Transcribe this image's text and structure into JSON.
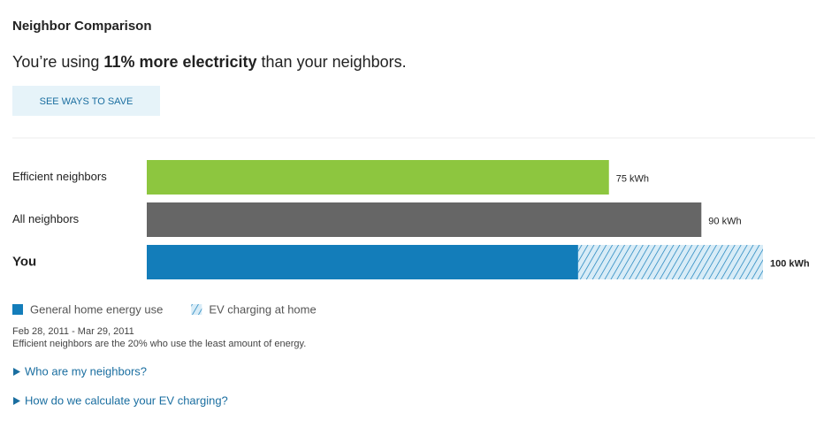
{
  "header": {
    "title": "Neighbor Comparison",
    "headline": {
      "before": "You’re using ",
      "emphasis": "11% more electricity",
      "after": " than your neighbors."
    },
    "button": "SEE WAYS TO SAVE"
  },
  "chart_data": {
    "type": "bar",
    "orientation": "horizontal",
    "categories": [
      "Efficient neighbors",
      "All neighbors",
      "You"
    ],
    "values": [
      75,
      90,
      100
    ],
    "value_labels": [
      "75 kWh",
      "90 kWh",
      "100 kWh"
    ],
    "colors": [
      "#8dc63f",
      "#666666",
      null
    ],
    "breakdown": {
      "category": 2,
      "series": [
        {
          "name": "General home energy use",
          "color": "#137dba",
          "pattern": "solid",
          "value": 70
        },
        {
          "name": "EV charging at home",
          "color": "#137dba",
          "pattern": "hatch",
          "value": 30
        }
      ]
    }
  },
  "footer": {
    "period": "Feb 28, 2011 - Mar 29, 2011",
    "note": "Efficient neighbors are the 20% who use the least amount of energy.",
    "links": [
      "Who are my neighbors?",
      "How do we calculate your EV charging?"
    ]
  }
}
